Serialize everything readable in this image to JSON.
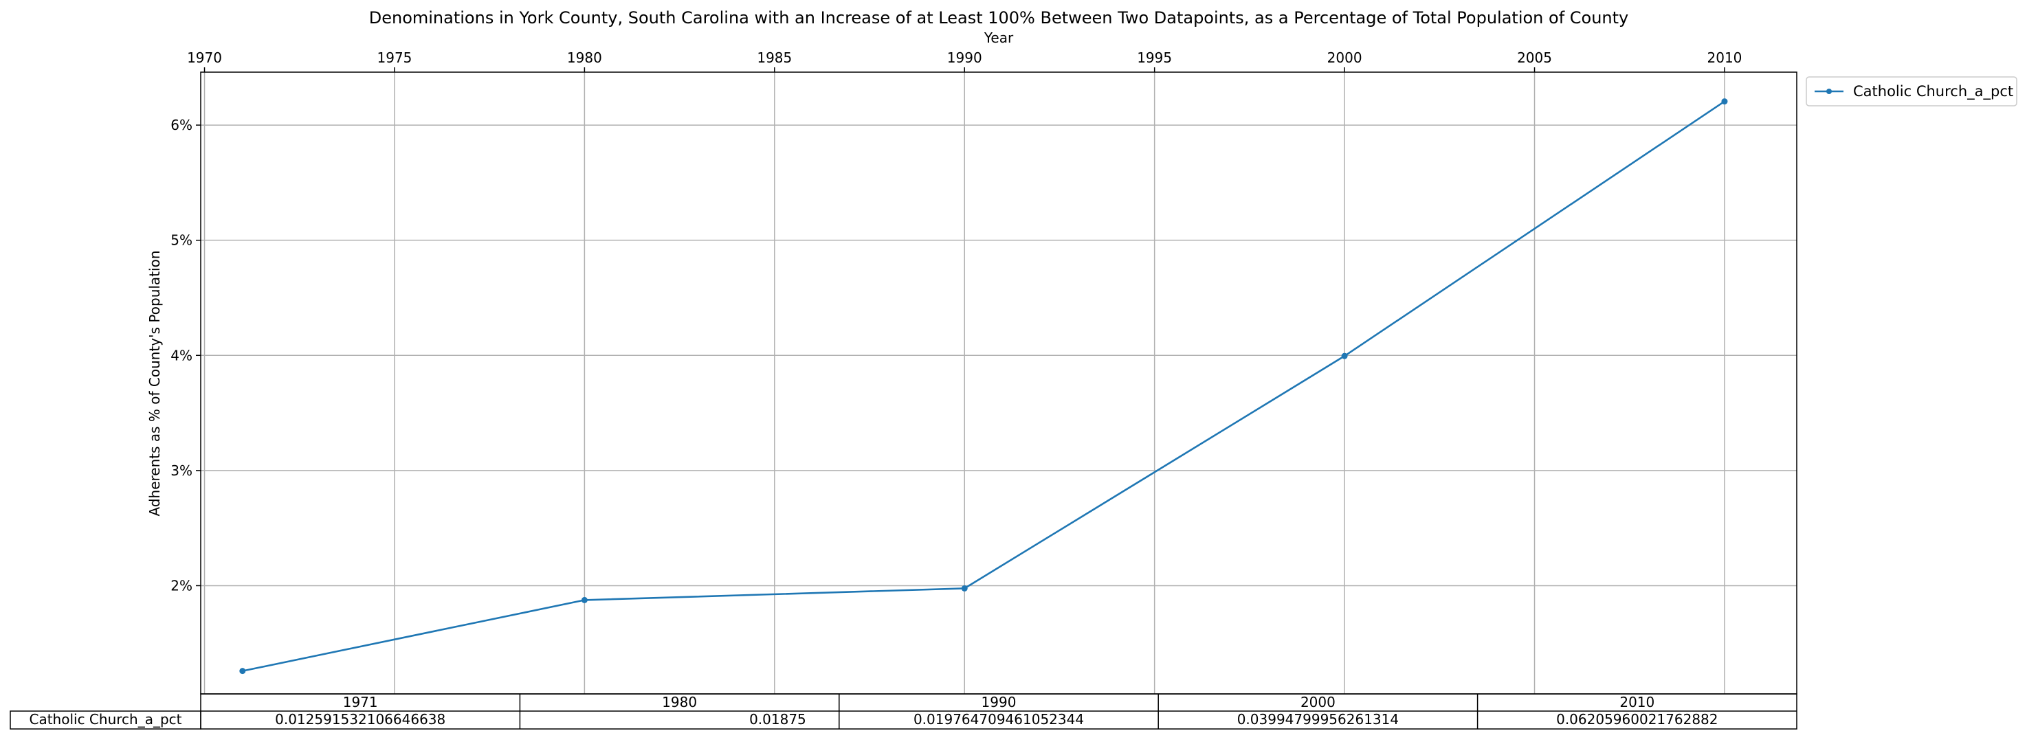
{
  "chart_data": {
    "type": "line",
    "title": "Denominations in York County, South Carolina with an Increase of at Least 100% Between Two Datapoints, as a Percentage of Total Population of County",
    "xlabel": "Year",
    "ylabel": "Adherents as % of County's Population",
    "x_axis_position": "top",
    "xlim": [
      1969.9,
      2011.9
    ],
    "ylim": [
      1.06,
      6.46
    ],
    "x_ticks": [
      1970,
      1975,
      1980,
      1985,
      1990,
      1995,
      2000,
      2005,
      2010
    ],
    "y_ticks": [
      2,
      3,
      4,
      5,
      6
    ],
    "y_tick_labels": [
      "2%",
      "3%",
      "4%",
      "5%",
      "6%"
    ],
    "grid": true,
    "legend_position": "outside-top-right",
    "x": [
      1971,
      1980,
      1990,
      2000,
      2010
    ],
    "series": [
      {
        "name": "Catholic Church_a_pct",
        "color": "#1f77b4",
        "marker": "dot",
        "values": [
          1.259153210664664,
          1.875,
          1.9764709461052343,
          3.994799956261314,
          6.205960021762882
        ]
      }
    ],
    "table": {
      "column_headers": [
        "1971",
        "1980",
        "1990",
        "2000",
        "2010"
      ],
      "rows": [
        {
          "label": "Catholic Church_a_pct",
          "cells": [
            "0.012591532106646638",
            "0.01875",
            "0.019764709461052344",
            "0.03994799956261314",
            "0.06205960021762882"
          ]
        }
      ]
    }
  }
}
